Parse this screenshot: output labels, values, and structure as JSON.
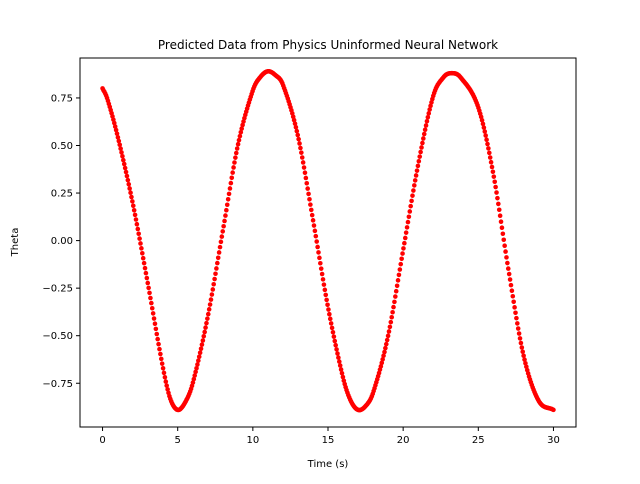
{
  "chart_data": {
    "type": "scatter",
    "title": "Predicted Data from Physics Uninformed Neural Network",
    "xlabel": "Time (s)",
    "ylabel": "Theta",
    "xlim": [
      -1.5,
      31.5
    ],
    "ylim": [
      -0.98,
      0.96
    ],
    "x_ticks": [
      0,
      5,
      10,
      15,
      20,
      25,
      30
    ],
    "x_tick_labels": [
      "0",
      "5",
      "10",
      "15",
      "20",
      "25",
      "30"
    ],
    "y_ticks": [
      -0.75,
      -0.5,
      -0.25,
      0.0,
      0.25,
      0.5,
      0.75
    ],
    "y_tick_labels": [
      "−0.75",
      "−0.50",
      "−0.25",
      "0.00",
      "0.25",
      "0.50",
      "0.75"
    ],
    "grid": false,
    "legend": "none",
    "marker_color": "#ff0000",
    "series": [
      {
        "color": "#ff0000",
        "key_points": {
          "x": [
            0,
            0.3,
            1,
            2,
            3,
            4,
            4.5,
            5,
            5.5,
            6,
            7,
            8,
            9,
            10,
            10.5,
            11,
            11.5,
            12,
            13,
            14,
            15,
            16,
            16.5,
            17,
            17.5,
            18,
            19,
            20,
            21,
            22,
            22.7,
            23.2,
            23.8,
            25,
            26,
            27,
            28,
            29,
            30
          ],
          "y": [
            0.8,
            0.75,
            0.55,
            0.2,
            -0.22,
            -0.66,
            -0.83,
            -0.89,
            -0.85,
            -0.75,
            -0.4,
            0.05,
            0.5,
            0.79,
            0.86,
            0.89,
            0.87,
            0.82,
            0.55,
            0.11,
            -0.35,
            -0.72,
            -0.84,
            -0.89,
            -0.87,
            -0.8,
            -0.5,
            -0.05,
            0.4,
            0.76,
            0.86,
            0.88,
            0.86,
            0.7,
            0.35,
            -0.15,
            -0.6,
            -0.84,
            -0.89
          ]
        },
        "point_count": 500
      }
    ]
  }
}
